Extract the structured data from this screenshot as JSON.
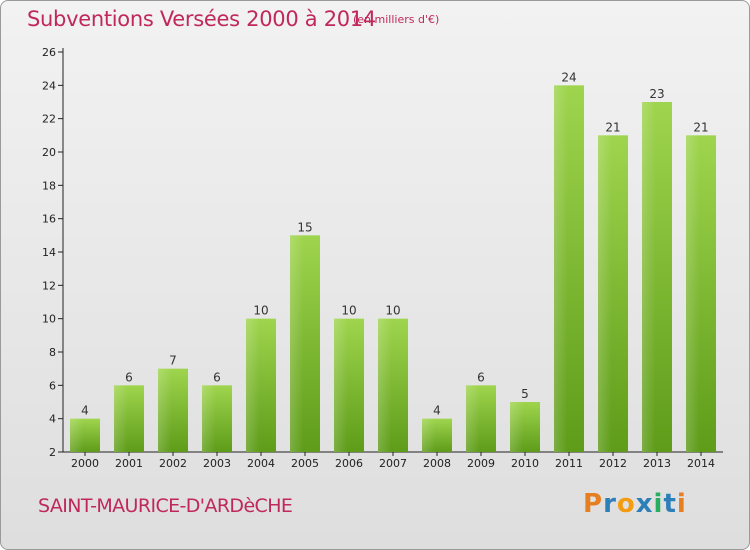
{
  "header": {
    "title": "Subventions Versées 2000 à 2014",
    "unit": "(en milliers d'€)"
  },
  "footer": {
    "commune": "SAINT-MAURICE-D'ARDèCHE",
    "logo": "Proxiti"
  },
  "colors": {
    "title": "#c0285c",
    "bar_light": "#99d14a",
    "bar_dark": "#5d9a18",
    "logo_letters": [
      "#e67e22",
      "#2c7fb8",
      "#f39c12",
      "#2c7fb8",
      "#27ae60",
      "#2c7fb8",
      "#e67e22"
    ]
  },
  "chart_data": {
    "type": "bar",
    "title": "Subventions Versées 2000 à 2014",
    "xlabel": "",
    "ylabel": "",
    "categories": [
      "2000",
      "2001",
      "2002",
      "2003",
      "2004",
      "2005",
      "2006",
      "2007",
      "2008",
      "2009",
      "2010",
      "2011",
      "2012",
      "2013",
      "2014"
    ],
    "values": [
      4,
      6,
      7,
      6,
      10,
      15,
      10,
      10,
      4,
      6,
      5,
      24,
      21,
      23,
      21
    ],
    "ylim": [
      2,
      26
    ],
    "yticks": [
      2,
      4,
      6,
      8,
      10,
      12,
      14,
      16,
      18,
      20,
      22,
      24,
      26
    ],
    "grid": false,
    "legend": "none"
  }
}
